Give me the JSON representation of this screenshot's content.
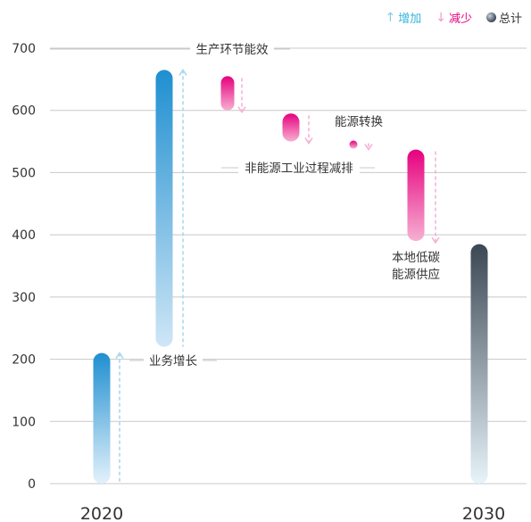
{
  "legend": {
    "increase": {
      "label": "增加",
      "arrow": "↑",
      "color": "#35b4dc"
    },
    "decrease": {
      "label": "减少",
      "arrow": "↓",
      "color": "#e6007e"
    },
    "total": {
      "label": "总计",
      "icon": "gray-dot-icon"
    }
  },
  "chart_data": {
    "type": "bar",
    "subtype": "waterfall",
    "ylim": [
      0,
      700
    ],
    "yticks": [
      0,
      100,
      200,
      300,
      400,
      500,
      600,
      700
    ],
    "grid": true,
    "legend_position": "top-right",
    "x_axis_labels": [
      "2020",
      "2030"
    ],
    "steps": [
      {
        "label": "",
        "kind": "total",
        "start": 0,
        "end": 210
      },
      {
        "label": "业务增长",
        "kind": "increase",
        "start": 220,
        "end": 665
      },
      {
        "label": "生产环节能效",
        "kind": "decrease",
        "start": 655,
        "end": 600
      },
      {
        "label": "非能源工业过程减排",
        "kind": "decrease",
        "start": 595,
        "end": 550
      },
      {
        "label": "能源转换",
        "kind": "decrease",
        "start": 550,
        "end": 540
      },
      {
        "label": "本地低碳\n能源供应",
        "kind": "decrease",
        "start": 537,
        "end": 390
      },
      {
        "label": "",
        "kind": "total",
        "start": 0,
        "end": 385
      }
    ]
  }
}
